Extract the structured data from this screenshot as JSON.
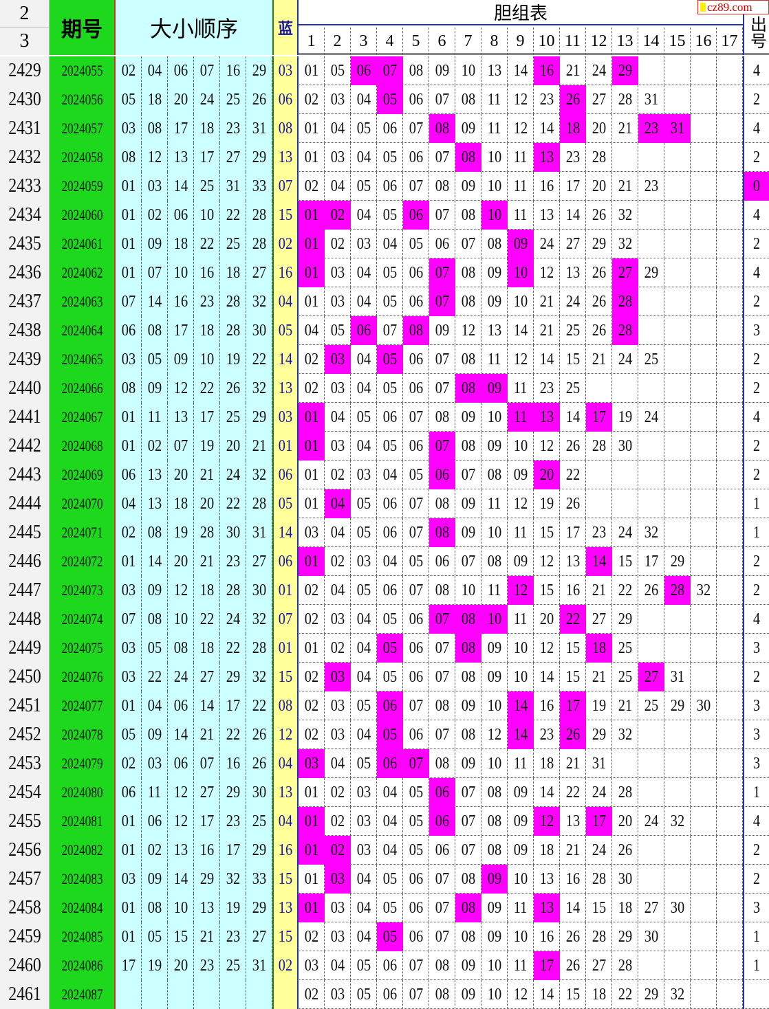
{
  "header": {
    "row_a": "2",
    "row_b": "3",
    "period": "期号",
    "draw": "大小顺序",
    "blue": "蓝",
    "danzu": "胆组表",
    "danzu_cols": [
      "1",
      "2",
      "3",
      "4",
      "5",
      "6",
      "7",
      "8",
      "9",
      "10",
      "11",
      "12",
      "13",
      "14",
      "15",
      "16",
      "17"
    ],
    "count": "出号"
  },
  "watermark": "cz89.com",
  "colors": {
    "period_bg": "#1ed81e",
    "draw_bg": "#ccffff",
    "blue_bg": "#ffff99",
    "hit": "#ff00ff",
    "blue_text": "#1a1aa0"
  },
  "rows": [
    [
      "2429",
      "2024055",
      [
        "02",
        "04",
        "06",
        "07",
        "16",
        "29"
      ],
      "03",
      [
        "01",
        "05",
        "06",
        "07",
        "08",
        "09",
        "10",
        "13",
        "14",
        "16",
        "21",
        "24",
        "29"
      ],
      "4"
    ],
    [
      "2430",
      "2024056",
      [
        "05",
        "18",
        "20",
        "24",
        "25",
        "26"
      ],
      "06",
      [
        "02",
        "03",
        "04",
        "05",
        "06",
        "07",
        "08",
        "11",
        "12",
        "23",
        "26",
        "27",
        "28",
        "31"
      ],
      "2"
    ],
    [
      "2431",
      "2024057",
      [
        "03",
        "08",
        "17",
        "18",
        "23",
        "31"
      ],
      "08",
      [
        "01",
        "04",
        "05",
        "06",
        "07",
        "08",
        "09",
        "11",
        "12",
        "14",
        "18",
        "20",
        "21",
        "23",
        "31"
      ],
      "4"
    ],
    [
      "2432",
      "2024058",
      [
        "08",
        "12",
        "13",
        "17",
        "27",
        "29"
      ],
      "13",
      [
        "01",
        "03",
        "04",
        "05",
        "06",
        "07",
        "08",
        "10",
        "11",
        "13",
        "23",
        "28"
      ],
      "2"
    ],
    [
      "2433",
      "2024059",
      [
        "01",
        "03",
        "14",
        "25",
        "31",
        "33"
      ],
      "07",
      [
        "02",
        "04",
        "05",
        "06",
        "07",
        "08",
        "09",
        "10",
        "11",
        "16",
        "17",
        "20",
        "21",
        "23"
      ],
      "0"
    ],
    [
      "2434",
      "2024060",
      [
        "01",
        "02",
        "06",
        "10",
        "22",
        "28"
      ],
      "15",
      [
        "01",
        "02",
        "04",
        "05",
        "06",
        "07",
        "08",
        "10",
        "11",
        "13",
        "14",
        "26",
        "32"
      ],
      "4"
    ],
    [
      "2435",
      "2024061",
      [
        "01",
        "09",
        "18",
        "22",
        "25",
        "28"
      ],
      "02",
      [
        "01",
        "02",
        "03",
        "04",
        "05",
        "06",
        "07",
        "08",
        "09",
        "24",
        "27",
        "29",
        "32"
      ],
      "2"
    ],
    [
      "2436",
      "2024062",
      [
        "01",
        "07",
        "10",
        "16",
        "18",
        "27"
      ],
      "16",
      [
        "01",
        "03",
        "04",
        "05",
        "06",
        "07",
        "08",
        "09",
        "10",
        "12",
        "13",
        "26",
        "27",
        "29"
      ],
      "4"
    ],
    [
      "2437",
      "2024063",
      [
        "07",
        "14",
        "16",
        "23",
        "28",
        "32"
      ],
      "04",
      [
        "01",
        "03",
        "04",
        "05",
        "06",
        "07",
        "08",
        "09",
        "10",
        "21",
        "24",
        "26",
        "28"
      ],
      "2"
    ],
    [
      "2438",
      "2024064",
      [
        "06",
        "08",
        "17",
        "18",
        "28",
        "30"
      ],
      "05",
      [
        "04",
        "05",
        "06",
        "07",
        "08",
        "09",
        "12",
        "13",
        "14",
        "21",
        "25",
        "26",
        "28"
      ],
      "3"
    ],
    [
      "2439",
      "2024065",
      [
        "03",
        "05",
        "09",
        "10",
        "19",
        "22"
      ],
      "14",
      [
        "02",
        "03",
        "04",
        "05",
        "06",
        "07",
        "08",
        "11",
        "12",
        "14",
        "15",
        "21",
        "24",
        "25"
      ],
      "2"
    ],
    [
      "2440",
      "2024066",
      [
        "08",
        "09",
        "12",
        "22",
        "26",
        "32"
      ],
      "13",
      [
        "02",
        "03",
        "04",
        "05",
        "06",
        "07",
        "08",
        "09",
        "11",
        "23",
        "25"
      ],
      "2"
    ],
    [
      "2441",
      "2024067",
      [
        "01",
        "11",
        "13",
        "17",
        "25",
        "29"
      ],
      "03",
      [
        "01",
        "04",
        "05",
        "06",
        "07",
        "08",
        "09",
        "10",
        "11",
        "13",
        "14",
        "17",
        "19",
        "24"
      ],
      "4"
    ],
    [
      "2442",
      "2024068",
      [
        "01",
        "02",
        "07",
        "19",
        "20",
        "21"
      ],
      "01",
      [
        "01",
        "03",
        "04",
        "05",
        "06",
        "07",
        "08",
        "09",
        "10",
        "12",
        "26",
        "28",
        "30"
      ],
      "2"
    ],
    [
      "2443",
      "2024069",
      [
        "06",
        "13",
        "20",
        "21",
        "24",
        "32"
      ],
      "06",
      [
        "01",
        "02",
        "03",
        "04",
        "05",
        "06",
        "07",
        "08",
        "09",
        "20",
        "22"
      ],
      "2"
    ],
    [
      "2444",
      "2024070",
      [
        "04",
        "13",
        "18",
        "20",
        "22",
        "28"
      ],
      "05",
      [
        "01",
        "04",
        "05",
        "06",
        "07",
        "08",
        "09",
        "11",
        "12",
        "19",
        "26"
      ],
      "1"
    ],
    [
      "2445",
      "2024071",
      [
        "02",
        "08",
        "19",
        "28",
        "30",
        "31"
      ],
      "14",
      [
        "03",
        "04",
        "05",
        "06",
        "07",
        "08",
        "09",
        "10",
        "11",
        "15",
        "17",
        "23",
        "24",
        "32"
      ],
      "1"
    ],
    [
      "2446",
      "2024072",
      [
        "01",
        "14",
        "20",
        "21",
        "23",
        "27"
      ],
      "06",
      [
        "01",
        "02",
        "03",
        "04",
        "05",
        "06",
        "07",
        "08",
        "09",
        "12",
        "13",
        "14",
        "15",
        "17",
        "29"
      ],
      "2"
    ],
    [
      "2447",
      "2024073",
      [
        "03",
        "09",
        "12",
        "18",
        "28",
        "30"
      ],
      "01",
      [
        "02",
        "04",
        "05",
        "06",
        "07",
        "08",
        "10",
        "11",
        "12",
        "15",
        "16",
        "21",
        "22",
        "26",
        "28",
        "32"
      ],
      "2"
    ],
    [
      "2448",
      "2024074",
      [
        "07",
        "08",
        "10",
        "22",
        "24",
        "32"
      ],
      "07",
      [
        "02",
        "03",
        "04",
        "05",
        "06",
        "07",
        "08",
        "10",
        "11",
        "20",
        "22",
        "27",
        "29"
      ],
      "4"
    ],
    [
      "2449",
      "2024075",
      [
        "03",
        "05",
        "08",
        "18",
        "22",
        "28"
      ],
      "01",
      [
        "01",
        "02",
        "04",
        "05",
        "06",
        "07",
        "08",
        "09",
        "10",
        "12",
        "15",
        "18",
        "25"
      ],
      "3"
    ],
    [
      "2450",
      "2024076",
      [
        "03",
        "22",
        "24",
        "27",
        "29",
        "32"
      ],
      "15",
      [
        "02",
        "03",
        "04",
        "05",
        "06",
        "07",
        "08",
        "09",
        "10",
        "14",
        "15",
        "21",
        "25",
        "27",
        "31"
      ],
      "2"
    ],
    [
      "2451",
      "2024077",
      [
        "01",
        "04",
        "06",
        "14",
        "17",
        "22"
      ],
      "08",
      [
        "02",
        "03",
        "05",
        "06",
        "07",
        "08",
        "09",
        "10",
        "14",
        "16",
        "17",
        "19",
        "21",
        "25",
        "29",
        "30"
      ],
      "3"
    ],
    [
      "2452",
      "2024078",
      [
        "05",
        "09",
        "14",
        "21",
        "22",
        "26"
      ],
      "12",
      [
        "02",
        "03",
        "04",
        "05",
        "06",
        "07",
        "08",
        "12",
        "14",
        "23",
        "26",
        "29",
        "32"
      ],
      "3"
    ],
    [
      "2453",
      "2024079",
      [
        "02",
        "03",
        "06",
        "07",
        "16",
        "26"
      ],
      "04",
      [
        "03",
        "04",
        "05",
        "06",
        "07",
        "08",
        "09",
        "10",
        "11",
        "18",
        "21",
        "31"
      ],
      "3"
    ],
    [
      "2454",
      "2024080",
      [
        "06",
        "11",
        "12",
        "27",
        "29",
        "30"
      ],
      "13",
      [
        "01",
        "02",
        "03",
        "04",
        "05",
        "06",
        "07",
        "08",
        "09",
        "14",
        "22",
        "24",
        "28"
      ],
      "1"
    ],
    [
      "2455",
      "2024081",
      [
        "01",
        "06",
        "12",
        "17",
        "23",
        "25"
      ],
      "04",
      [
        "01",
        "02",
        "03",
        "04",
        "05",
        "06",
        "07",
        "08",
        "09",
        "12",
        "13",
        "17",
        "20",
        "24",
        "32"
      ],
      "4"
    ],
    [
      "2456",
      "2024082",
      [
        "01",
        "02",
        "13",
        "16",
        "17",
        "29"
      ],
      "16",
      [
        "01",
        "02",
        "03",
        "04",
        "05",
        "06",
        "07",
        "08",
        "09",
        "18",
        "21",
        "24",
        "26"
      ],
      "2"
    ],
    [
      "2457",
      "2024083",
      [
        "03",
        "09",
        "14",
        "29",
        "32",
        "33"
      ],
      "15",
      [
        "01",
        "03",
        "04",
        "05",
        "06",
        "07",
        "08",
        "09",
        "10",
        "13",
        "16",
        "28",
        "30"
      ],
      "2"
    ],
    [
      "2458",
      "2024084",
      [
        "01",
        "08",
        "10",
        "13",
        "19",
        "29"
      ],
      "13",
      [
        "01",
        "03",
        "04",
        "05",
        "06",
        "07",
        "08",
        "09",
        "11",
        "13",
        "14",
        "15",
        "18",
        "27",
        "30"
      ],
      "3"
    ],
    [
      "2459",
      "2024085",
      [
        "01",
        "05",
        "15",
        "21",
        "23",
        "27"
      ],
      "15",
      [
        "02",
        "03",
        "04",
        "05",
        "06",
        "07",
        "08",
        "09",
        "10",
        "16",
        "26",
        "28",
        "29",
        "30"
      ],
      "1"
    ],
    [
      "2460",
      "2024086",
      [
        "17",
        "19",
        "20",
        "23",
        "25",
        "31"
      ],
      "02",
      [
        "03",
        "04",
        "05",
        "06",
        "07",
        "08",
        "09",
        "10",
        "11",
        "17",
        "26",
        "27",
        "28"
      ],
      "1"
    ],
    [
      "2461",
      "2024087",
      [],
      "",
      [
        "02",
        "03",
        "05",
        "06",
        "07",
        "08",
        "09",
        "10",
        "12",
        "14",
        "15",
        "18",
        "22",
        "29",
        "32"
      ],
      ""
    ]
  ]
}
